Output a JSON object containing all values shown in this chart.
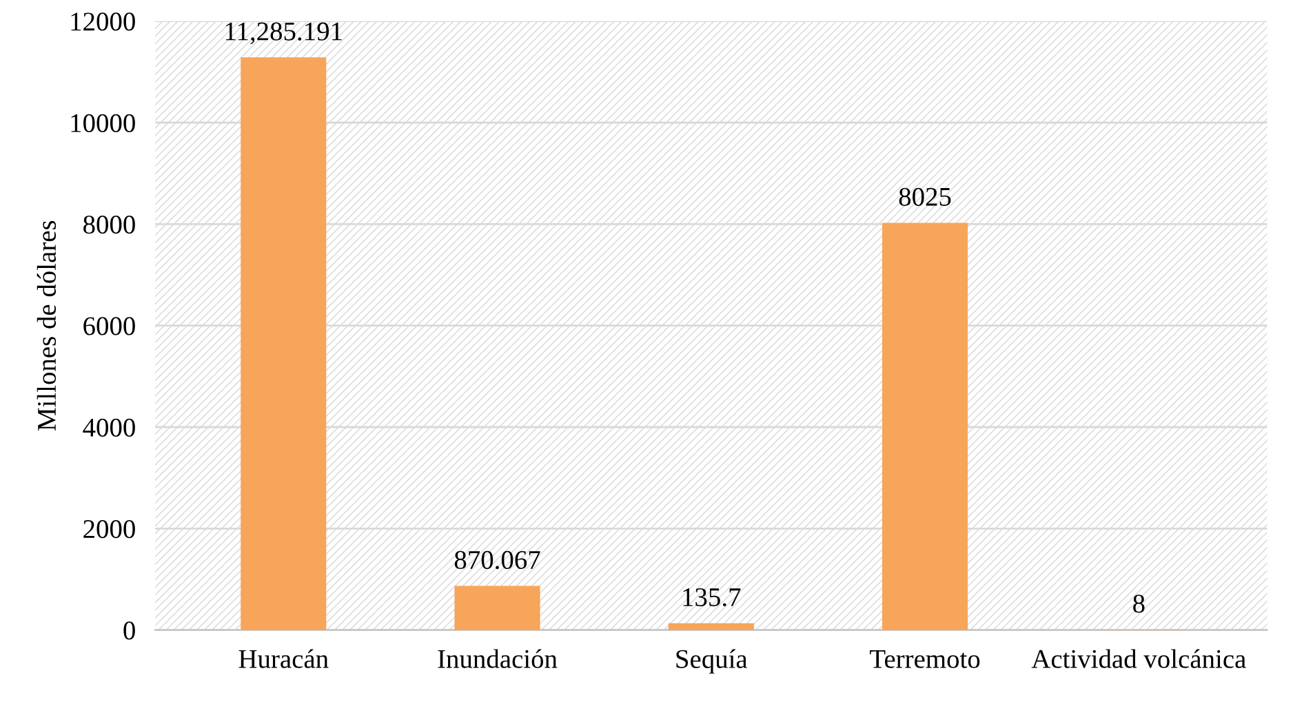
{
  "chart_data": {
    "type": "bar",
    "ylabel": "Millones de dólares",
    "categories": [
      "Huracán",
      "Inundación",
      "Sequía",
      "Terremoto",
      "Actividad volcánica"
    ],
    "values": [
      11285.191,
      870.067,
      135.7,
      8025,
      8
    ],
    "value_labels": [
      "11,285.191",
      "870.067",
      "135.7",
      "8025",
      "8"
    ],
    "color": "#f6a55b",
    "ylim": [
      0,
      12000
    ],
    "yticks": [
      0,
      2000,
      4000,
      6000,
      8000,
      10000,
      12000
    ],
    "grid": "y",
    "legend": false
  }
}
